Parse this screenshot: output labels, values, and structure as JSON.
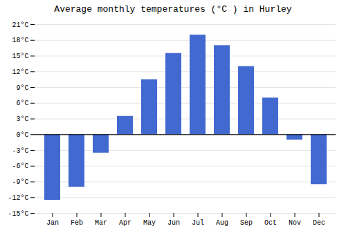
{
  "chart_data": {
    "type": "bar",
    "title": "Average monthly temperatures (°C ) in Hurley",
    "categories": [
      "Jan",
      "Feb",
      "Mar",
      "Apr",
      "May",
      "Jun",
      "Jul",
      "Aug",
      "Sep",
      "Oct",
      "Nov",
      "Dec"
    ],
    "values": [
      -12.5,
      -10.0,
      -3.5,
      3.5,
      10.5,
      15.5,
      19.0,
      17.0,
      13.0,
      7.0,
      -1.0,
      -9.5
    ],
    "ylim": [
      -15,
      21
    ],
    "yticks": [
      {
        "value": -15,
        "label": "-15°C"
      },
      {
        "value": -12,
        "label": "-12°C"
      },
      {
        "value": -9,
        "label": "-9°C"
      },
      {
        "value": -6,
        "label": "-6°C"
      },
      {
        "value": -3,
        "label": "-3°C"
      },
      {
        "value": 0,
        "label": "0°C"
      },
      {
        "value": 3,
        "label": "3°C"
      },
      {
        "value": 6,
        "label": "6°C"
      },
      {
        "value": 9,
        "label": "9°C"
      },
      {
        "value": 12,
        "label": "12°C"
      },
      {
        "value": 15,
        "label": "15°C"
      },
      {
        "value": 18,
        "label": "18°C"
      },
      {
        "value": 21,
        "label": "21°C"
      }
    ],
    "grid": true
  }
}
